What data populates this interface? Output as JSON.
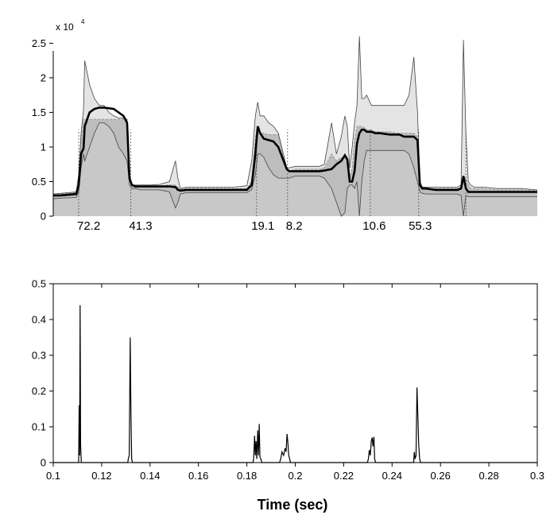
{
  "chart_data": [
    {
      "type": "area",
      "title": "",
      "xlabel": "",
      "ylabel": "",
      "multiplier_base": "x 10",
      "multiplier_exp": "4",
      "xlim": [
        0.1,
        0.3
      ],
      "ylim": [
        0,
        2.7
      ],
      "yticks": [
        0,
        0.5,
        1,
        1.5,
        2,
        2.5
      ],
      "ytick_labels": [
        "0",
        "0.5",
        "1",
        "1.5",
        "2",
        "2.5"
      ],
      "grid": false,
      "colors": {
        "upper_band": "#e4e4e4",
        "lower_band": "#c8c8c8",
        "mean_line": "#000000",
        "outline": "#444444"
      },
      "x": [
        0.1,
        0.103,
        0.1095,
        0.1105,
        0.1115,
        0.1125,
        0.113,
        0.115,
        0.117,
        0.119,
        0.121,
        0.123,
        0.125,
        0.127,
        0.129,
        0.1305,
        0.1315,
        0.1325,
        0.134,
        0.136,
        0.14,
        0.144,
        0.148,
        0.1505,
        0.1515,
        0.1525,
        0.155,
        0.16,
        0.165,
        0.17,
        0.175,
        0.18,
        0.182,
        0.1835,
        0.1845,
        0.1855,
        0.187,
        0.189,
        0.191,
        0.193,
        0.1965,
        0.1975,
        0.2,
        0.205,
        0.21,
        0.212,
        0.215,
        0.217,
        0.219,
        0.2205,
        0.2215,
        0.2225,
        0.2235,
        0.2245,
        0.2255,
        0.2265,
        0.2275,
        0.2285,
        0.2295,
        0.2315,
        0.233,
        0.235,
        0.239,
        0.243,
        0.245,
        0.247,
        0.249,
        0.2505,
        0.2515,
        0.2525,
        0.254,
        0.258,
        0.262,
        0.265,
        0.267,
        0.2685,
        0.2695,
        0.2705,
        0.2715,
        0.2725,
        0.274,
        0.278,
        0.283,
        0.288,
        0.293,
        0.3
      ],
      "series": [
        {
          "role": "max",
          "values": [
            0.32,
            0.33,
            0.35,
            0.6,
            1.2,
            1.55,
            2.25,
            1.9,
            1.7,
            1.6,
            1.6,
            1.5,
            1.45,
            1.42,
            1.42,
            1.4,
            0.6,
            0.45,
            0.45,
            0.45,
            0.45,
            0.46,
            0.5,
            0.8,
            0.55,
            0.4,
            0.42,
            0.42,
            0.42,
            0.42,
            0.42,
            0.44,
            0.8,
            1.45,
            1.65,
            1.45,
            1.45,
            1.35,
            1.3,
            1.2,
            0.7,
            0.7,
            0.72,
            0.72,
            0.72,
            0.75,
            1.35,
            0.9,
            1.15,
            1.45,
            1.3,
            0.7,
            1.0,
            1.35,
            1.6,
            2.6,
            1.7,
            1.7,
            1.75,
            1.6,
            1.6,
            1.6,
            1.6,
            1.6,
            1.6,
            1.75,
            2.3,
            1.5,
            0.5,
            0.42,
            0.42,
            0.42,
            0.42,
            0.42,
            0.42,
            0.45,
            2.55,
            1.2,
            0.5,
            0.45,
            0.42,
            0.42,
            0.4,
            0.4,
            0.4,
            0.38
          ]
        },
        {
          "role": "upper",
          "values": [
            0.31,
            0.32,
            0.34,
            0.5,
            1.1,
            1.4,
            1.4,
            1.4,
            1.4,
            1.4,
            1.4,
            1.4,
            1.4,
            1.4,
            1.4,
            1.35,
            0.55,
            0.45,
            0.44,
            0.44,
            0.44,
            0.44,
            0.45,
            0.45,
            0.42,
            0.4,
            0.4,
            0.4,
            0.4,
            0.4,
            0.4,
            0.4,
            0.5,
            1.15,
            1.3,
            1.2,
            1.2,
            1.18,
            1.18,
            1.18,
            0.65,
            0.65,
            0.68,
            0.68,
            0.68,
            0.7,
            0.9,
            0.8,
            0.85,
            0.85,
            0.8,
            0.55,
            0.7,
            1.1,
            1.3,
            1.3,
            1.3,
            1.28,
            1.25,
            1.25,
            1.22,
            1.22,
            1.22,
            1.2,
            1.2,
            1.2,
            1.2,
            1.15,
            0.45,
            0.4,
            0.4,
            0.4,
            0.4,
            0.4,
            0.4,
            0.42,
            0.55,
            0.55,
            0.45,
            0.4,
            0.4,
            0.4,
            0.38,
            0.38,
            0.38,
            0.37
          ]
        },
        {
          "role": "mean",
          "values": [
            0.3,
            0.3,
            0.32,
            0.45,
            0.9,
            0.98,
            1.3,
            1.5,
            1.55,
            1.57,
            1.57,
            1.56,
            1.55,
            1.5,
            1.45,
            1.35,
            0.55,
            0.45,
            0.43,
            0.43,
            0.43,
            0.43,
            0.43,
            0.42,
            0.38,
            0.37,
            0.38,
            0.38,
            0.38,
            0.38,
            0.38,
            0.38,
            0.45,
            0.9,
            1.3,
            1.2,
            1.12,
            1.1,
            1.08,
            1.0,
            0.68,
            0.65,
            0.65,
            0.65,
            0.65,
            0.66,
            0.68,
            0.75,
            0.8,
            0.88,
            0.82,
            0.5,
            0.5,
            0.65,
            1.05,
            1.2,
            1.25,
            1.25,
            1.22,
            1.22,
            1.2,
            1.2,
            1.18,
            1.18,
            1.15,
            1.15,
            1.15,
            1.1,
            0.45,
            0.4,
            0.4,
            0.38,
            0.38,
            0.38,
            0.38,
            0.4,
            0.58,
            0.4,
            0.35,
            0.35,
            0.35,
            0.35,
            0.35,
            0.35,
            0.35,
            0.35
          ]
        },
        {
          "role": "lower",
          "values": [
            0.25,
            0.26,
            0.27,
            0.35,
            0.7,
            0.9,
            0.8,
            1.0,
            1.2,
            1.35,
            1.35,
            1.3,
            1.2,
            1.0,
            0.9,
            0.8,
            0.45,
            0.4,
            0.4,
            0.38,
            0.38,
            0.38,
            0.35,
            0.12,
            0.2,
            0.32,
            0.34,
            0.34,
            0.34,
            0.34,
            0.34,
            0.34,
            0.38,
            0.6,
            0.9,
            0.9,
            0.85,
            0.7,
            0.6,
            0.55,
            0.55,
            0.55,
            0.58,
            0.58,
            0.58,
            0.55,
            0.4,
            0.2,
            0.0,
            0.05,
            0.4,
            0.45,
            0.45,
            0.4,
            0.5,
            0.0,
            0.5,
            0.8,
            0.95,
            0.95,
            0.95,
            0.95,
            0.95,
            0.95,
            0.95,
            0.9,
            0.7,
            0.5,
            0.35,
            0.33,
            0.32,
            0.32,
            0.32,
            0.32,
            0.32,
            0.3,
            0.0,
            0.3,
            0.28,
            0.28,
            0.28,
            0.28,
            0.28,
            0.28,
            0.28,
            0.28
          ]
        }
      ],
      "annotations": [
        {
          "x": 0.1105,
          "text": "72.2"
        },
        {
          "x": 0.132,
          "text": "41.3"
        },
        {
          "x": 0.1825,
          "text": "19.1"
        },
        {
          "x": 0.1968,
          "text": "8.2"
        },
        {
          "x": 0.2285,
          "text": "10.6"
        },
        {
          "x": 0.2475,
          "text": "55.3"
        }
      ],
      "marker_x": [
        0.1105,
        0.132,
        0.184,
        0.1968,
        0.231,
        0.251,
        0.2705
      ]
    },
    {
      "type": "line",
      "title": "",
      "xlabel": "Time (sec)",
      "ylabel": "",
      "xlim": [
        0.1,
        0.3
      ],
      "ylim": [
        0,
        0.5
      ],
      "xticks": [
        0.1,
        0.12,
        0.14,
        0.16,
        0.18,
        0.2,
        0.22,
        0.24,
        0.26,
        0.28,
        0.3
      ],
      "xtick_labels": [
        "0.1",
        "0.12",
        "0.14",
        "0.16",
        "0.18",
        "0.2",
        "0.22",
        "0.24",
        "0.26",
        "0.28",
        "0.3"
      ],
      "yticks": [
        0,
        0.1,
        0.2,
        0.3,
        0.4,
        0.5
      ],
      "ytick_labels": [
        "0",
        "0.1",
        "0.2",
        "0.3",
        "0.4",
        "0.5"
      ],
      "grid": false,
      "points": [
        [
          0.1,
          0
        ],
        [
          0.1105,
          0
        ],
        [
          0.1107,
          0.16
        ],
        [
          0.1109,
          0.02
        ],
        [
          0.1111,
          0.44
        ],
        [
          0.1113,
          0.05
        ],
        [
          0.1116,
          0
        ],
        [
          0.1308,
          0
        ],
        [
          0.131,
          0.01
        ],
        [
          0.1314,
          0.02
        ],
        [
          0.1318,
          0.35
        ],
        [
          0.1321,
          0.14
        ],
        [
          0.1324,
          0.01
        ],
        [
          0.1327,
          0
        ],
        [
          0.1825,
          0
        ],
        [
          0.1828,
          0.01
        ],
        [
          0.1832,
          0.075
        ],
        [
          0.1835,
          0.02
        ],
        [
          0.1838,
          0.06
        ],
        [
          0.1841,
          0.01
        ],
        [
          0.1845,
          0.09
        ],
        [
          0.1848,
          0.02
        ],
        [
          0.1851,
          0.108
        ],
        [
          0.1854,
          0.015
        ],
        [
          0.1858,
          0.01
        ],
        [
          0.1862,
          0
        ],
        [
          0.1935,
          0
        ],
        [
          0.194,
          0.01
        ],
        [
          0.1945,
          0.03
        ],
        [
          0.1952,
          0.02
        ],
        [
          0.1958,
          0.04
        ],
        [
          0.1962,
          0.03
        ],
        [
          0.1966,
          0.08
        ],
        [
          0.1969,
          0.06
        ],
        [
          0.1973,
          0.02
        ],
        [
          0.1977,
          0.01
        ],
        [
          0.198,
          0
        ],
        [
          0.2298,
          0
        ],
        [
          0.2302,
          0.01
        ],
        [
          0.2306,
          0.035
        ],
        [
          0.231,
          0.02
        ],
        [
          0.2314,
          0.06
        ],
        [
          0.2318,
          0.07
        ],
        [
          0.2321,
          0.045
        ],
        [
          0.2325,
          0.072
        ],
        [
          0.2328,
          0.01
        ],
        [
          0.2332,
          0
        ],
        [
          0.2489,
          0
        ],
        [
          0.2492,
          0.03
        ],
        [
          0.2495,
          0.01
        ],
        [
          0.2499,
          0.02
        ],
        [
          0.2503,
          0.21
        ],
        [
          0.2507,
          0.12
        ],
        [
          0.251,
          0.05
        ],
        [
          0.2514,
          0.01
        ],
        [
          0.2518,
          0
        ],
        [
          0.3,
          0
        ]
      ]
    }
  ]
}
